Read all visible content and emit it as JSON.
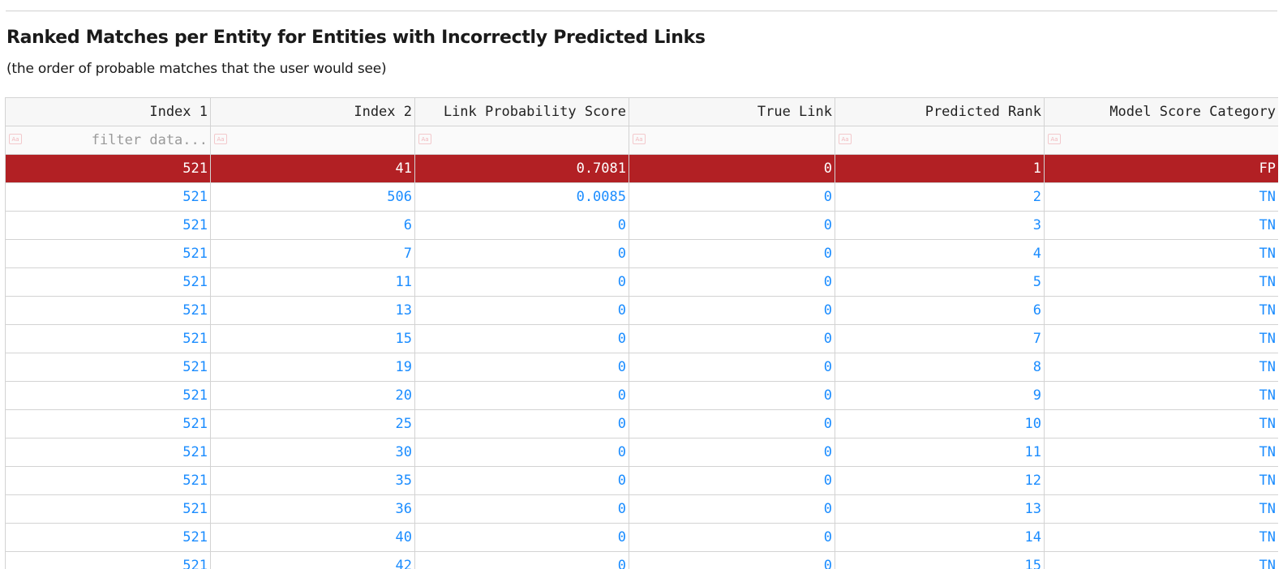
{
  "title": "Ranked Matches per Entity for Entities with Incorrectly Predicted Links",
  "subtitle": "(the order of probable matches that the user would see)",
  "table": {
    "columns": [
      "Index 1",
      "Index 2",
      "Link Probability Score",
      "True Link",
      "Predicted Rank",
      "Model Score Category"
    ],
    "filter_placeholder": "filter data...",
    "case_badge": "Aa",
    "selected_row_index": 0,
    "rows": [
      [
        "521",
        "41",
        "0.7081",
        "0",
        "1",
        "FP"
      ],
      [
        "521",
        "506",
        "0.0085",
        "0",
        "2",
        "TN"
      ],
      [
        "521",
        "6",
        "0",
        "0",
        "3",
        "TN"
      ],
      [
        "521",
        "7",
        "0",
        "0",
        "4",
        "TN"
      ],
      [
        "521",
        "11",
        "0",
        "0",
        "5",
        "TN"
      ],
      [
        "521",
        "13",
        "0",
        "0",
        "6",
        "TN"
      ],
      [
        "521",
        "15",
        "0",
        "0",
        "7",
        "TN"
      ],
      [
        "521",
        "19",
        "0",
        "0",
        "8",
        "TN"
      ],
      [
        "521",
        "20",
        "0",
        "0",
        "9",
        "TN"
      ],
      [
        "521",
        "25",
        "0",
        "0",
        "10",
        "TN"
      ],
      [
        "521",
        "30",
        "0",
        "0",
        "11",
        "TN"
      ],
      [
        "521",
        "35",
        "0",
        "0",
        "12",
        "TN"
      ],
      [
        "521",
        "36",
        "0",
        "0",
        "13",
        "TN"
      ],
      [
        "521",
        "40",
        "0",
        "0",
        "14",
        "TN"
      ],
      [
        "521",
        "42",
        "0",
        "0",
        "15",
        "TN"
      ]
    ]
  },
  "colors": {
    "selected_row_bg": "#b22024",
    "cell_text": "#1a8cff",
    "grid_line": "#d3d3d3"
  }
}
